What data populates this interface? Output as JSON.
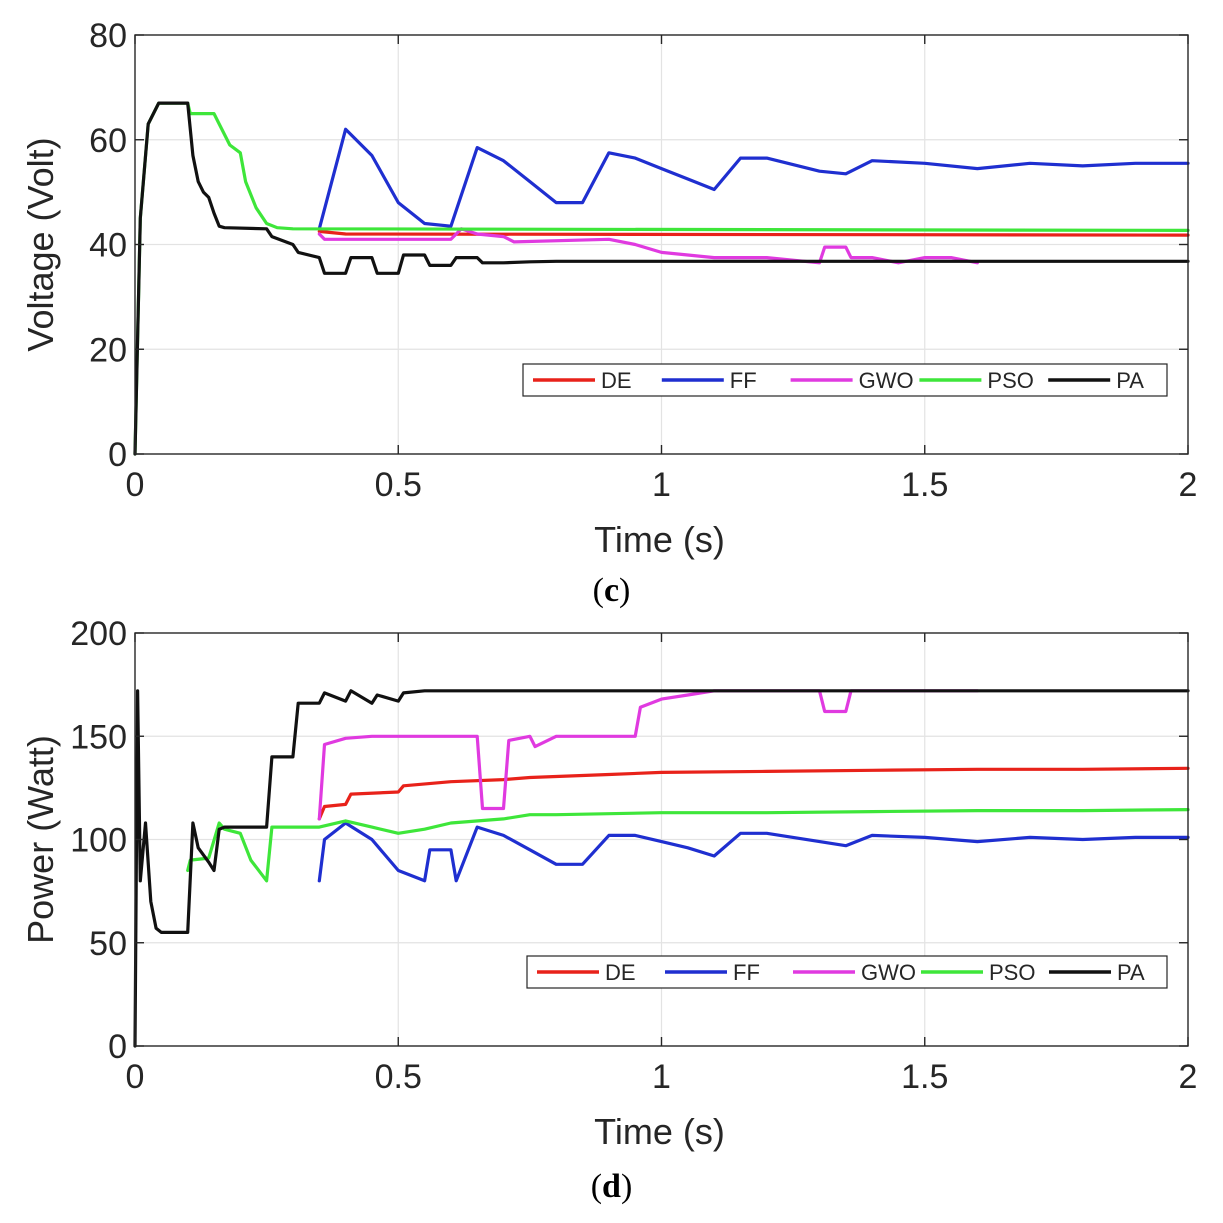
{
  "chart_data": [
    {
      "type": "line",
      "panel_label": "c",
      "xlabel": "Time (s)",
      "ylabel": "Voltage (Volt)",
      "xlim": [
        0,
        2
      ],
      "ylim": [
        0,
        80
      ],
      "xticks": [
        0,
        0.5,
        1,
        1.5,
        2
      ],
      "xtick_labels": [
        "0",
        "0.5",
        "1",
        "1.5",
        "2"
      ],
      "yticks": [
        0,
        20,
        40,
        60,
        80
      ],
      "ytick_labels": [
        "0",
        "20",
        "40",
        "60",
        "80"
      ],
      "grid": true,
      "legend_position": "bottom-right",
      "series": [
        {
          "name": "DE",
          "color": "#e8221a",
          "x": [
            0.35,
            0.4,
            2.0
          ],
          "y": [
            42.5,
            42,
            41.8
          ]
        },
        {
          "name": "FF",
          "color": "#1f2fd0",
          "x": [
            0.35,
            0.4,
            0.45,
            0.5,
            0.55,
            0.6,
            0.65,
            0.7,
            0.75,
            0.8,
            0.85,
            0.9,
            0.95,
            1.0,
            1.05,
            1.1,
            1.15,
            1.2,
            1.3,
            1.35,
            1.4,
            1.5,
            1.6,
            1.7,
            1.8,
            1.9,
            2.0
          ],
          "y": [
            43,
            62,
            57,
            48,
            44,
            43.5,
            58.5,
            56,
            52,
            48,
            48,
            57.5,
            56.5,
            54.5,
            52.5,
            50.5,
            56.5,
            56.5,
            54,
            53.5,
            56,
            55.5,
            54.5,
            55.5,
            55,
            55.5,
            55.5
          ]
        },
        {
          "name": "GWO",
          "color": "#e03ae0",
          "x": [
            0.35,
            0.36,
            0.5,
            0.6,
            0.62,
            0.65,
            0.7,
            0.72,
            0.9,
            0.95,
            1.0,
            1.05,
            1.1,
            1.2,
            1.3,
            1.31,
            1.35,
            1.36,
            1.4,
            1.45,
            1.5,
            1.55,
            1.6
          ],
          "y": [
            42,
            41,
            41,
            41,
            43,
            42,
            41.5,
            40.5,
            41,
            40,
            38.5,
            38,
            37.5,
            37.5,
            36.5,
            39.5,
            39.5,
            37.5,
            37.5,
            36.5,
            37.5,
            37.5,
            36.5
          ]
        },
        {
          "name": "PSO",
          "color": "#3ee63a",
          "x": [
            0.0,
            0.01,
            0.025,
            0.045,
            0.1,
            0.105,
            0.15,
            0.16,
            0.17,
            0.18,
            0.2,
            0.21,
            0.23,
            0.25,
            0.27,
            0.3,
            2.0
          ],
          "y": [
            0,
            45,
            63,
            67,
            67,
            65,
            65,
            63,
            61,
            59,
            57.5,
            52,
            47,
            44,
            43.2,
            43,
            42.7
          ]
        },
        {
          "name": "PA",
          "color": "#111111",
          "x": [
            0.0,
            0.01,
            0.025,
            0.045,
            0.1,
            0.11,
            0.12,
            0.13,
            0.14,
            0.15,
            0.16,
            0.17,
            0.25,
            0.26,
            0.3,
            0.31,
            0.35,
            0.36,
            0.4,
            0.41,
            0.45,
            0.46,
            0.5,
            0.51,
            0.55,
            0.56,
            0.6,
            0.61,
            0.65,
            0.66,
            0.7,
            0.75,
            0.8,
            2.0
          ],
          "y": [
            0,
            45,
            63,
            67,
            67,
            57,
            52,
            50,
            49,
            46,
            43.5,
            43.2,
            43,
            41.5,
            40,
            38.5,
            37.5,
            34.5,
            34.5,
            37.5,
            37.5,
            34.5,
            34.5,
            38,
            38,
            36,
            36,
            37.5,
            37.5,
            36.5,
            36.5,
            36.7,
            36.8,
            36.8
          ]
        }
      ]
    },
    {
      "type": "line",
      "panel_label": "d",
      "xlabel": "Time (s)",
      "ylabel": "Power (Watt)",
      "xlim": [
        0,
        2
      ],
      "ylim": [
        0,
        200
      ],
      "xticks": [
        0,
        0.5,
        1,
        1.5,
        2
      ],
      "xtick_labels": [
        "0",
        "0.5",
        "1",
        "1.5",
        "2"
      ],
      "yticks": [
        0,
        50,
        100,
        150,
        200
      ],
      "ytick_labels": [
        "0",
        "50",
        "100",
        "150",
        "200"
      ],
      "grid": true,
      "legend_position": "bottom-right",
      "series": [
        {
          "name": "DE",
          "color": "#e8221a",
          "x": [
            0.35,
            0.36,
            0.4,
            0.41,
            0.5,
            0.51,
            0.6,
            0.7,
            0.75,
            0.8,
            0.9,
            1.0,
            1.2,
            1.4,
            1.6,
            1.8,
            2.0
          ],
          "y": [
            110,
            116,
            117,
            122,
            123,
            126,
            128,
            129,
            130,
            130.5,
            131.5,
            132.5,
            133,
            133.5,
            134,
            134,
            134.5
          ]
        },
        {
          "name": "FF",
          "color": "#1f2fd0",
          "x": [
            0.35,
            0.36,
            0.4,
            0.45,
            0.5,
            0.55,
            0.56,
            0.6,
            0.61,
            0.65,
            0.7,
            0.75,
            0.8,
            0.85,
            0.9,
            0.95,
            1.0,
            1.05,
            1.1,
            1.15,
            1.2,
            1.3,
            1.35,
            1.4,
            1.5,
            1.6,
            1.7,
            1.8,
            1.9,
            2.0
          ],
          "y": [
            80,
            100,
            108,
            100,
            85,
            80,
            95,
            95,
            80,
            106,
            102,
            95,
            88,
            88,
            102,
            102,
            99,
            96,
            92,
            103,
            103,
            99,
            97,
            102,
            101,
            99,
            101,
            100,
            101,
            101
          ]
        },
        {
          "name": "GWO",
          "color": "#e03ae0",
          "x": [
            0.35,
            0.36,
            0.4,
            0.45,
            0.65,
            0.66,
            0.7,
            0.71,
            0.75,
            0.76,
            0.8,
            0.9,
            0.95,
            0.96,
            1.0,
            1.05,
            1.1,
            1.3,
            1.31,
            1.35,
            1.36,
            1.45,
            1.6
          ],
          "y": [
            110,
            146,
            149,
            150,
            150,
            115,
            115,
            148,
            150,
            145,
            150,
            150,
            150,
            164,
            168,
            170,
            172,
            172,
            162,
            162,
            172,
            172,
            172
          ]
        },
        {
          "name": "PSO",
          "color": "#3ee63a",
          "x": [
            0.1,
            0.105,
            0.14,
            0.16,
            0.17,
            0.2,
            0.22,
            0.25,
            0.26,
            0.3,
            0.35,
            0.4,
            0.45,
            0.5,
            0.55,
            0.6,
            0.7,
            0.75,
            0.8,
            1.0,
            1.2,
            1.4,
            1.6,
            1.8,
            2.0
          ],
          "y": [
            85,
            90,
            91,
            108,
            105,
            103,
            90,
            80,
            106,
            106,
            106,
            109,
            106,
            103,
            105,
            108,
            110,
            112,
            112,
            113,
            113,
            113.5,
            114,
            114,
            114.5
          ]
        },
        {
          "name": "PA",
          "color": "#111111",
          "x": [
            0.0,
            0.005,
            0.01,
            0.02,
            0.03,
            0.04,
            0.05,
            0.1,
            0.11,
            0.12,
            0.14,
            0.15,
            0.16,
            0.17,
            0.2,
            0.25,
            0.26,
            0.3,
            0.31,
            0.35,
            0.36,
            0.4,
            0.41,
            0.45,
            0.46,
            0.5,
            0.51,
            0.55,
            0.6,
            0.65,
            0.7,
            0.8,
            1.0,
            1.2,
            1.5,
            2.0
          ],
          "y": [
            0,
            172,
            80,
            108,
            70,
            57,
            55,
            55,
            108,
            96,
            89,
            85,
            105,
            106,
            106,
            106,
            140,
            140,
            166,
            166,
            171,
            167,
            172,
            166,
            170,
            167,
            171,
            172,
            172,
            172,
            172,
            172,
            172,
            172,
            172,
            172
          ]
        }
      ]
    }
  ]
}
